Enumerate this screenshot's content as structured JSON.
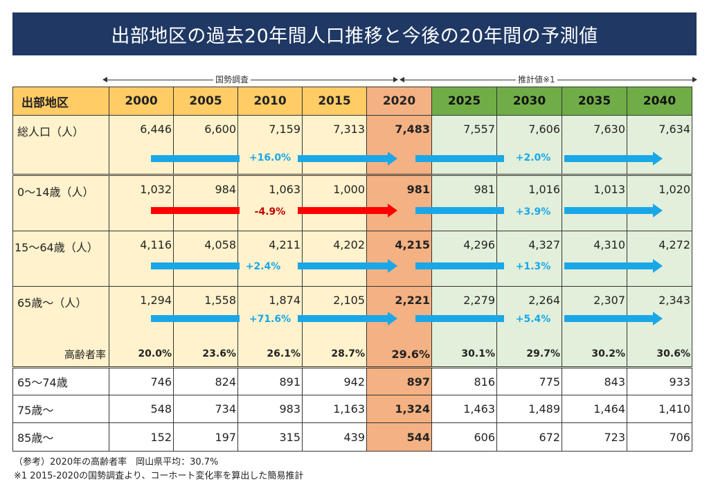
{
  "title": "出部地区の過去20年間人口推移と今後の20年間の予測値",
  "spans": {
    "census": "国勢調査",
    "estimate": "推計値※1"
  },
  "table": {
    "corner": "出部地区",
    "years": [
      "2000",
      "2005",
      "2010",
      "2015",
      "2020",
      "2025",
      "2030",
      "2035",
      "2040"
    ],
    "rows": [
      {
        "label": "総人口（人）",
        "values": [
          "6,446",
          "6,600",
          "7,159",
          "7,313",
          "7,483",
          "7,557",
          "7,606",
          "7,630",
          "7,634"
        ],
        "change_past": "+16.0%",
        "change_future": "+2.0%"
      },
      {
        "label": "0～14歳（人）",
        "values": [
          "1,032",
          "984",
          "1,063",
          "1,000",
          "981",
          "981",
          "1,016",
          "1,013",
          "1,020"
        ],
        "change_past": "-4.9%",
        "change_future": "+3.9%"
      },
      {
        "label": "15～64歳（人）",
        "values": [
          "4,116",
          "4,058",
          "4,211",
          "4,202",
          "4,215",
          "4,296",
          "4,327",
          "4,310",
          "4,272"
        ],
        "change_past": "+2.4%",
        "change_future": "+1.3%"
      },
      {
        "label": "65歳～（人）",
        "values": [
          "1,294",
          "1,558",
          "1,874",
          "2,105",
          "2,221",
          "2,279",
          "2,264",
          "2,307",
          "2,343"
        ],
        "change_past": "+71.6%",
        "change_future": "+5.4%"
      }
    ],
    "aging": {
      "label": "高齢者率",
      "values": [
        "20.0%",
        "23.6%",
        "26.1%",
        "28.7%",
        "29.6%",
        "30.1%",
        "29.7%",
        "30.2%",
        "30.6%"
      ]
    },
    "sub_rows": [
      {
        "label": "65～74歳",
        "values": [
          "746",
          "824",
          "891",
          "942",
          "897",
          "816",
          "775",
          "843",
          "933"
        ]
      },
      {
        "label": "75歳～",
        "values": [
          "548",
          "734",
          "983",
          "1,163",
          "1,324",
          "1,463",
          "1,489",
          "1,464",
          "1,410"
        ]
      },
      {
        "label": "85歳～",
        "values": [
          "152",
          "197",
          "315",
          "439",
          "544",
          "606",
          "672",
          "723",
          "706"
        ]
      }
    ]
  },
  "notes": {
    "ref": "（参考）2020年の高齢者率　岡山県平均：30.7%",
    "footnote": "※1  2015-2020の国勢調査より、コーホート変化率を算出した簡易推計"
  },
  "colors": {
    "title_bg": "#1f3864",
    "past_header": "#ffcc66",
    "past_cell": "#fff2cc",
    "year_2020": "#f4b183",
    "future_header": "#70ad47",
    "future_cell": "#e2efda",
    "arrow_blue": "#1aa7e8",
    "arrow_red": "#ff0000"
  }
}
